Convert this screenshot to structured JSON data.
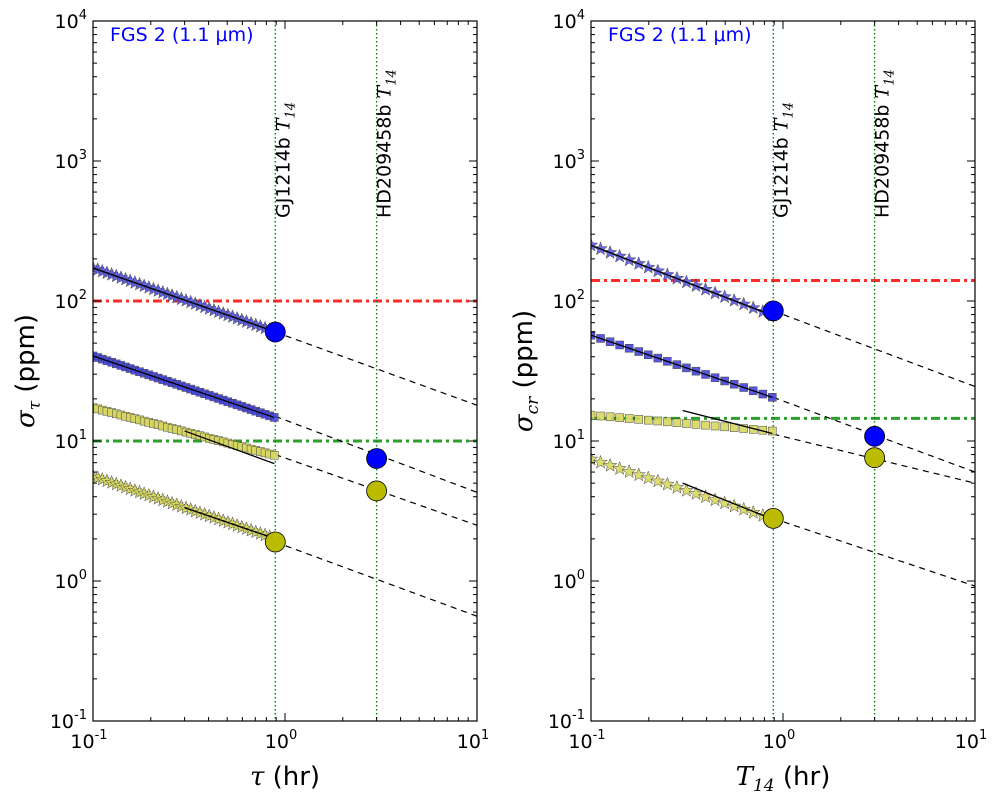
{
  "chart_data": [
    {
      "type": "scatter",
      "xscale": "log",
      "yscale": "log",
      "xlim": [
        0.1,
        10
      ],
      "ylim": [
        0.1,
        10000
      ],
      "title": "FGS 2 (1.1 μm)",
      "title_color": "#0000ff",
      "xlabel": {
        "symbol": "τ",
        "unit": " (hr)"
      },
      "ylabel": {
        "symbol": "στ",
        "unit": " (ppm)"
      },
      "xticks": [
        {
          "value": 0.1,
          "base": "10",
          "exp": "-1"
        },
        {
          "value": 1,
          "base": "10",
          "exp": "0"
        },
        {
          "value": 10,
          "base": "10",
          "exp": "1"
        }
      ],
      "yticks": [
        {
          "value": 0.1,
          "base": "10",
          "exp": "-1"
        },
        {
          "value": 1,
          "base": "10",
          "exp": "0"
        },
        {
          "value": 10,
          "base": "10",
          "exp": "1"
        },
        {
          "value": 100,
          "base": "10",
          "exp": "2"
        },
        {
          "value": 1000,
          "base": "10",
          "exp": "3"
        },
        {
          "value": 10000,
          "base": "10",
          "exp": "4"
        }
      ],
      "vlines": [
        {
          "x": 0.89,
          "name": "GJ1214b",
          "suffix": "T14",
          "color": "#008000"
        },
        {
          "x": 3.0,
          "name": "HD209458b",
          "suffix": "T14",
          "color": "#008000"
        }
      ],
      "hlines": [
        {
          "y": 100,
          "color": "#ff2a2a"
        },
        {
          "y": 10,
          "color": "#2ca02c"
        }
      ],
      "series": [
        {
          "name": "blue-stars",
          "marker": "star",
          "color": "#5a5ae6",
          "x0": 0.1,
          "x1": 0.88,
          "y0": 172,
          "slope": -0.48,
          "count": 40,
          "fit": [
            0.1,
            0.88
          ],
          "extrap": [
            0.88,
            10
          ]
        },
        {
          "name": "blue-squares",
          "marker": "square",
          "color": "#4444dd",
          "x0": 0.1,
          "x1": 0.88,
          "y0": 40.5,
          "slope": -0.465,
          "count": 40,
          "fit": [
            0.1,
            0.88
          ],
          "extrap": [
            0.88,
            10
          ]
        },
        {
          "name": "yellow-squares",
          "marker": "square",
          "color": "#d8d860",
          "x0": 0.1,
          "x1": 0.88,
          "y0": 17.3,
          "slope": -0.36,
          "count": 40,
          "fit": [
            0.3,
            0.88
          ],
          "extrap": [
            0.88,
            10
          ],
          "fit_y0": 11.8,
          "fit_slope": -0.5
        },
        {
          "name": "yellow-stars",
          "marker": "star",
          "color": "#d8d860",
          "x0": 0.1,
          "x1": 0.88,
          "y0": 5.6,
          "slope": -0.47,
          "count": 40,
          "fit": [
            0.3,
            0.88
          ],
          "extrap": [
            0.88,
            10
          ]
        }
      ],
      "big_points": [
        {
          "x": 0.89,
          "y": 60,
          "color": "#0000ff"
        },
        {
          "x": 3.0,
          "y": 7.5,
          "color": "#0000ff"
        },
        {
          "x": 3.0,
          "y": 4.4,
          "color": "#bbbb00"
        },
        {
          "x": 0.89,
          "y": 1.9,
          "color": "#bbbb00"
        }
      ],
      "extrap_lines": [
        {
          "x0": 0.89,
          "y0": 60,
          "x1": 10,
          "y1": 18
        },
        {
          "x0": 0.89,
          "y0": 15,
          "x1": 10,
          "y1": 4.3
        },
        {
          "x0": 0.89,
          "y0": 8.0,
          "x1": 10,
          "y1": 2.5
        },
        {
          "x0": 0.89,
          "y0": 1.9,
          "x1": 10,
          "y1": 0.56
        }
      ]
    },
    {
      "type": "scatter",
      "xscale": "log",
      "yscale": "log",
      "xlim": [
        0.1,
        10
      ],
      "ylim": [
        0.1,
        10000
      ],
      "title": "FGS 2 (1.1 μm)",
      "title_color": "#0000ff",
      "xlabel": {
        "symbol": "T14",
        "unit": " (hr)"
      },
      "ylabel": {
        "symbol": "σcr",
        "unit": " (ppm)"
      },
      "xticks": [
        {
          "value": 0.1,
          "base": "10",
          "exp": "-1"
        },
        {
          "value": 1,
          "base": "10",
          "exp": "0"
        },
        {
          "value": 10,
          "base": "10",
          "exp": "1"
        }
      ],
      "yticks": [
        {
          "value": 0.1,
          "base": "10",
          "exp": "-1"
        },
        {
          "value": 1,
          "base": "10",
          "exp": "0"
        },
        {
          "value": 10,
          "base": "10",
          "exp": "1"
        },
        {
          "value": 100,
          "base": "10",
          "exp": "2"
        },
        {
          "value": 1000,
          "base": "10",
          "exp": "3"
        },
        {
          "value": 10000,
          "base": "10",
          "exp": "4"
        }
      ],
      "vlines": [
        {
          "x": 0.89,
          "name": "GJ1214b",
          "suffix": "T14",
          "color": "#008000"
        },
        {
          "x": 3.0,
          "name": "HD209458b",
          "suffix": "T14",
          "color": "#008000"
        }
      ],
      "hlines": [
        {
          "y": 140,
          "color": "#ff2a2a"
        },
        {
          "y": 14.5,
          "color": "#2ca02c"
        }
      ],
      "series": [
        {
          "name": "blue-stars",
          "marker": "star",
          "color": "#5a5ae6",
          "x0": 0.1,
          "x1": 0.88,
          "y0": 250,
          "slope": -0.53,
          "count": 20,
          "fit": [
            0.1,
            0.88
          ],
          "extrap": [
            0.88,
            10
          ]
        },
        {
          "name": "blue-squares",
          "marker": "square",
          "color": "#4444dd",
          "x0": 0.1,
          "x1": 0.88,
          "y0": 57,
          "slope": -0.47,
          "count": 20,
          "fit": [
            0.1,
            0.88
          ],
          "extrap": [
            0.88,
            10
          ]
        },
        {
          "name": "yellow-squares",
          "marker": "square",
          "color": "#d8d860",
          "x0": 0.1,
          "x1": 0.88,
          "y0": 15.3,
          "slope": -0.12,
          "count": 20,
          "fit": [
            0.3,
            0.88
          ],
          "extrap": [
            0.88,
            10
          ],
          "fit_y0": 16.5,
          "fit_slope": -0.35
        },
        {
          "name": "yellow-stars",
          "marker": "star",
          "color": "#d8d860",
          "x0": 0.1,
          "x1": 0.88,
          "y0": 7.4,
          "slope": -0.45,
          "count": 20,
          "fit": [
            0.3,
            0.88
          ],
          "extrap": [
            0.88,
            10
          ],
          "fit_y0": 5.0,
          "fit_slope": -0.55
        }
      ],
      "big_points": [
        {
          "x": 0.89,
          "y": 85,
          "color": "#0000ff"
        },
        {
          "x": 3.0,
          "y": 10.8,
          "color": "#0000ff"
        },
        {
          "x": 3.0,
          "y": 7.6,
          "color": "#bbbb00"
        },
        {
          "x": 0.89,
          "y": 2.8,
          "color": "#bbbb00"
        }
      ],
      "extrap_lines": [
        {
          "x0": 0.89,
          "y0": 85,
          "x1": 10,
          "y1": 24.5
        },
        {
          "x0": 0.89,
          "y0": 20.5,
          "x1": 10,
          "y1": 6.0
        },
        {
          "x0": 0.89,
          "y0": 11.2,
          "x1": 10,
          "y1": 5.0
        },
        {
          "x0": 0.89,
          "y0": 2.8,
          "x1": 10,
          "y1": 0.92
        }
      ]
    }
  ]
}
